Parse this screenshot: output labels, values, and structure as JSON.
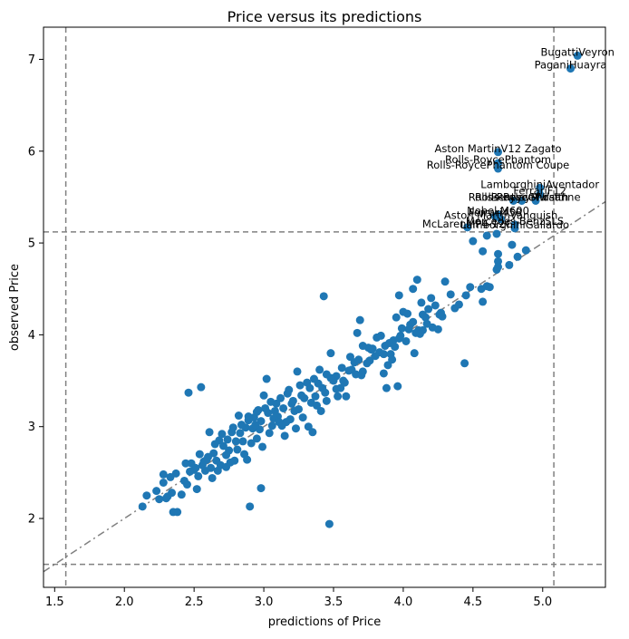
{
  "chart_data": {
    "type": "scatter",
    "title": "Price versus its predictions",
    "xlabel": "predictions of Price",
    "ylabel": "observed Price",
    "xlim": [
      1.42,
      5.45
    ],
    "ylim": [
      1.25,
      7.35
    ],
    "xticks": [
      1.5,
      2.0,
      2.5,
      3.0,
      3.5,
      4.0,
      4.5,
      5.0
    ],
    "yticks": [
      2,
      3,
      4,
      5,
      6,
      7
    ],
    "xtick_labels": [
      "1.5",
      "2.0",
      "2.5",
      "3.0",
      "3.5",
      "4.0",
      "4.5",
      "5.0"
    ],
    "ytick_labels": [
      "2",
      "3",
      "4",
      "5",
      "6",
      "7"
    ],
    "grid": false,
    "legend": "none",
    "colors": {
      "points": "#1f77b4",
      "reference": "#808080"
    },
    "reference_lines": {
      "vertical": [
        1.58,
        5.08
      ],
      "horizontal": [
        1.5,
        5.12
      ],
      "diagonal": {
        "slope": 1.0,
        "intercept": 0.0,
        "style": "dash-dot"
      }
    },
    "annotations": [
      {
        "text": "BugattiVeyron",
        "x": 5.25,
        "y": 7.04
      },
      {
        "text": "PaganiHuayra",
        "x": 5.2,
        "y": 6.9
      },
      {
        "text": "Aston MartinV12 Zagato",
        "x": 4.68,
        "y": 5.99
      },
      {
        "text": "Rolls-RoycePhantom",
        "x": 4.68,
        "y": 5.87
      },
      {
        "text": "Rolls-RoycePhantom Coupe",
        "x": 4.68,
        "y": 5.81
      },
      {
        "text": "LamborghiniAventador",
        "x": 4.98,
        "y": 5.6
      },
      {
        "text": "FerrariF12",
        "x": 4.98,
        "y": 5.53
      },
      {
        "text": "Rolls-RoyceGhost",
        "x": 4.79,
        "y": 5.46
      },
      {
        "text": "Rolls-RoyceWraith",
        "x": 4.85,
        "y": 5.46
      },
      {
        "text": "BentleyMulsanne",
        "x": 4.95,
        "y": 5.46
      },
      {
        "text": "Nobel M600",
        "x": 4.68,
        "y": 5.31
      },
      {
        "text": "Ferrari458",
        "x": 4.66,
        "y": 5.29
      },
      {
        "text": "Aston MartinVanquish",
        "x": 4.7,
        "y": 5.26
      },
      {
        "text": "Mercedes-BenzSLS",
        "x": 4.8,
        "y": 5.2
      },
      {
        "text": "McLarenMP4-12C",
        "x": 4.46,
        "y": 5.17
      },
      {
        "text": "LamborghiniGallardo",
        "x": 4.8,
        "y": 5.16
      }
    ],
    "points": [
      [
        5.25,
        7.04
      ],
      [
        5.2,
        6.9
      ],
      [
        4.68,
        5.99
      ],
      [
        4.68,
        5.87
      ],
      [
        4.68,
        5.81
      ],
      [
        4.98,
        5.6
      ],
      [
        4.98,
        5.53
      ],
      [
        4.79,
        5.46
      ],
      [
        4.85,
        5.46
      ],
      [
        4.95,
        5.46
      ],
      [
        4.68,
        5.31
      ],
      [
        4.66,
        5.29
      ],
      [
        4.7,
        5.26
      ],
      [
        4.8,
        5.2
      ],
      [
        4.46,
        5.17
      ],
      [
        4.8,
        5.16
      ],
      [
        4.67,
        5.1
      ],
      [
        4.6,
        5.08
      ],
      [
        4.5,
        5.02
      ],
      [
        4.78,
        4.98
      ],
      [
        4.88,
        4.92
      ],
      [
        4.57,
        4.91
      ],
      [
        4.68,
        4.88
      ],
      [
        4.82,
        4.85
      ],
      [
        4.68,
        4.8
      ],
      [
        4.6,
        4.53
      ],
      [
        4.68,
        4.74
      ],
      [
        4.76,
        4.76
      ],
      [
        4.67,
        4.71
      ],
      [
        4.62,
        4.52
      ],
      [
        4.56,
        4.5
      ],
      [
        4.48,
        4.52
      ],
      [
        4.57,
        4.36
      ],
      [
        4.45,
        4.43
      ],
      [
        4.44,
        3.69
      ],
      [
        4.4,
        4.33
      ],
      [
        4.37,
        4.29
      ],
      [
        4.3,
        4.58
      ],
      [
        4.27,
        4.24
      ],
      [
        4.23,
        4.32
      ],
      [
        4.28,
        4.2
      ],
      [
        4.2,
        4.4
      ],
      [
        4.17,
        4.12
      ],
      [
        4.14,
        4.22
      ],
      [
        4.1,
        4.6
      ],
      [
        4.07,
        4.5
      ],
      [
        4.05,
        4.11
      ],
      [
        4.04,
        4.06
      ],
      [
        4.11,
        4.05
      ],
      [
        4.09,
        4.02
      ],
      [
        4.03,
        4.23
      ],
      [
        4.0,
        4.25
      ],
      [
        3.99,
        4.07
      ],
      [
        3.97,
        4.43
      ],
      [
        3.95,
        4.19
      ],
      [
        3.93,
        3.94
      ],
      [
        3.97,
        3.96
      ],
      [
        3.91,
        3.79
      ],
      [
        3.89,
        3.67
      ],
      [
        3.87,
        3.88
      ],
      [
        3.84,
        3.99
      ],
      [
        3.81,
        3.97
      ],
      [
        3.78,
        3.85
      ],
      [
        3.75,
        3.86
      ],
      [
        3.71,
        3.88
      ],
      [
        3.69,
        4.16
      ],
      [
        3.67,
        4.02
      ],
      [
        3.65,
        3.7
      ],
      [
        3.62,
        3.76
      ],
      [
        3.56,
        3.64
      ],
      [
        3.52,
        3.55
      ],
      [
        3.48,
        3.8
      ],
      [
        3.5,
        3.5
      ],
      [
        3.45,
        3.57
      ],
      [
        3.43,
        4.42
      ],
      [
        3.42,
        3.42
      ],
      [
        3.4,
        3.62
      ],
      [
        3.37,
        3.33
      ],
      [
        3.36,
        3.52
      ],
      [
        3.34,
        3.26
      ],
      [
        3.31,
        3.48
      ],
      [
        3.29,
        3.31
      ],
      [
        3.27,
        3.34
      ],
      [
        3.24,
        3.6
      ],
      [
        3.22,
        3.17
      ],
      [
        3.2,
        3.25
      ],
      [
        3.18,
        3.4
      ],
      [
        3.16,
        3.05
      ],
      [
        3.14,
        3.2
      ],
      [
        3.12,
        3.31
      ],
      [
        3.1,
        3.11
      ],
      [
        3.08,
        3.17
      ],
      [
        3.06,
        3.01
      ],
      [
        3.05,
        3.27
      ],
      [
        3.03,
        3.15
      ],
      [
        3.02,
        3.52
      ],
      [
        3.0,
        3.34
      ],
      [
        2.98,
        3.06
      ],
      [
        2.96,
        3.18
      ],
      [
        2.95,
        2.87
      ],
      [
        2.93,
        3.1
      ],
      [
        2.91,
        2.82
      ],
      [
        2.89,
        3.11
      ],
      [
        2.87,
        2.99
      ],
      [
        2.86,
        2.7
      ],
      [
        2.84,
        3.02
      ],
      [
        2.82,
        3.12
      ],
      [
        2.81,
        2.75
      ],
      [
        2.79,
        2.63
      ],
      [
        2.77,
        2.94
      ],
      [
        2.75,
        2.74
      ],
      [
        2.73,
        2.69
      ],
      [
        2.71,
        2.79
      ],
      [
        2.69,
        2.58
      ],
      [
        2.68,
        2.85
      ],
      [
        2.66,
        2.63
      ],
      [
        2.64,
        2.71
      ],
      [
        2.62,
        2.55
      ],
      [
        2.61,
        2.94
      ],
      [
        2.6,
        2.67
      ],
      [
        2.58,
        2.52
      ],
      [
        2.56,
        2.58
      ],
      [
        2.55,
        3.43
      ],
      [
        2.53,
        2.46
      ],
      [
        2.51,
        2.55
      ],
      [
        2.48,
        2.6
      ],
      [
        2.46,
        3.37
      ],
      [
        2.45,
        2.37
      ],
      [
        2.43,
        2.41
      ],
      [
        2.41,
        2.26
      ],
      [
        2.38,
        2.07
      ],
      [
        2.35,
        2.07
      ],
      [
        2.37,
        2.49
      ],
      [
        2.34,
        2.28
      ],
      [
        2.31,
        2.24
      ],
      [
        2.3,
        2.22
      ],
      [
        2.28,
        2.48
      ],
      [
        2.28,
        2.39
      ],
      [
        2.25,
        2.21
      ],
      [
        2.23,
        2.3
      ],
      [
        2.16,
        2.25
      ],
      [
        2.13,
        2.13
      ],
      [
        2.33,
        2.45
      ],
      [
        2.9,
        2.13
      ],
      [
        2.98,
        2.33
      ],
      [
        3.47,
        1.94
      ],
      [
        3.59,
        3.33
      ],
      [
        3.61,
        3.61
      ],
      [
        3.71,
        3.6
      ],
      [
        3.83,
        3.81
      ],
      [
        3.88,
        3.42
      ],
      [
        3.96,
        3.44
      ],
      [
        4.08,
        3.8
      ],
      [
        4.13,
        4.35
      ],
      [
        4.21,
        4.08
      ],
      [
        4.26,
        4.22
      ],
      [
        4.34,
        4.44
      ],
      [
        4.18,
        4.28
      ],
      [
        4.14,
        4.05
      ],
      [
        3.92,
        3.73
      ],
      [
        3.76,
        3.72
      ],
      [
        3.55,
        3.42
      ],
      [
        3.41,
        3.17
      ],
      [
        3.28,
        3.1
      ],
      [
        3.15,
        2.9
      ],
      [
        2.99,
        2.78
      ],
      [
        2.88,
        2.64
      ],
      [
        2.73,
        2.56
      ],
      [
        2.63,
        2.44
      ],
      [
        2.52,
        2.32
      ],
      [
        2.92,
        2.98
      ],
      [
        3.07,
        3.09
      ],
      [
        3.19,
        3.08
      ],
      [
        3.33,
        3.42
      ],
      [
        3.45,
        3.28
      ],
      [
        3.52,
        3.41
      ],
      [
        3.63,
        3.62
      ],
      [
        3.74,
        3.69
      ],
      [
        3.86,
        3.79
      ],
      [
        3.98,
        3.99
      ],
      [
        4.07,
        4.14
      ],
      [
        4.16,
        4.19
      ],
      [
        4.25,
        4.06
      ],
      [
        3.86,
        3.58
      ],
      [
        3.66,
        3.57
      ],
      [
        3.53,
        3.33
      ],
      [
        3.38,
        3.23
      ],
      [
        3.25,
        3.19
      ],
      [
        3.11,
        3.05
      ],
      [
        2.97,
        2.97
      ],
      [
        2.85,
        2.84
      ],
      [
        2.76,
        2.61
      ],
      [
        2.67,
        2.52
      ],
      [
        2.57,
        2.62
      ],
      [
        2.5,
        2.53
      ],
      [
        2.7,
        2.92
      ],
      [
        2.8,
        2.84
      ],
      [
        2.95,
        3.16
      ],
      [
        3.04,
        2.93
      ],
      [
        3.13,
        3.01
      ],
      [
        3.23,
        2.98
      ],
      [
        3.32,
        3.0
      ],
      [
        3.44,
        3.37
      ],
      [
        3.58,
        3.48
      ],
      [
        3.7,
        3.56
      ],
      [
        3.8,
        3.77
      ],
      [
        3.94,
        3.87
      ],
      [
        4.02,
        3.93
      ],
      [
        4.12,
        4.01
      ],
      [
        3.35,
        2.94
      ],
      [
        3.21,
        3.28
      ],
      [
        3.09,
        3.25
      ],
      [
        2.94,
        3.02
      ],
      [
        2.83,
        2.93
      ],
      [
        2.74,
        2.86
      ],
      [
        2.59,
        2.64
      ],
      [
        2.47,
        2.51
      ],
      [
        3.26,
        3.45
      ],
      [
        3.39,
        3.47
      ],
      [
        3.48,
        3.53
      ],
      [
        3.57,
        3.5
      ],
      [
        3.68,
        3.73
      ],
      [
        3.77,
        3.84
      ],
      [
        3.9,
        3.91
      ],
      [
        3.01,
        3.2
      ],
      [
        3.17,
        3.36
      ],
      [
        2.89,
        3.07
      ],
      [
        2.78,
        2.99
      ],
      [
        2.65,
        2.81
      ],
      [
        2.54,
        2.7
      ],
      [
        2.44,
        2.6
      ]
    ]
  }
}
